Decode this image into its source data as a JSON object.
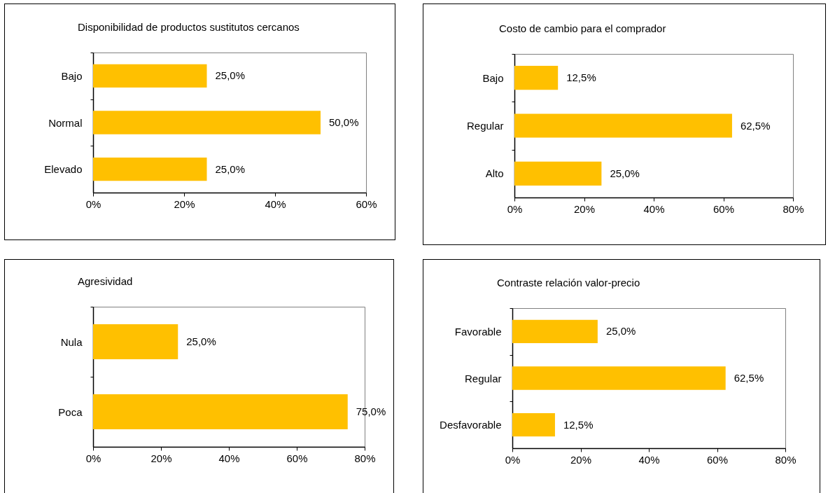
{
  "chart_data": [
    {
      "type": "bar",
      "orientation": "horizontal",
      "title": "Disponibilidad de productos sustitutos cercanos",
      "categories": [
        "Bajo",
        "Normal",
        "Elevado"
      ],
      "values": [
        25,
        50,
        25
      ],
      "value_labels": [
        "25,0%",
        "50,0%",
        "25,0%"
      ],
      "color": "#ffc000",
      "xlim": [
        0,
        60
      ],
      "xticks": [
        {
          "value": 0,
          "label": "0%"
        },
        {
          "value": 20,
          "label": "20%"
        },
        {
          "value": 40,
          "label": "40%"
        },
        {
          "value": 60,
          "label": "60%"
        }
      ]
    },
    {
      "type": "bar",
      "orientation": "horizontal",
      "title": "Costo de cambio para el comprador",
      "categories": [
        "Bajo",
        "Regular",
        "Alto"
      ],
      "values": [
        12.5,
        62.5,
        25
      ],
      "value_labels": [
        "12,5%",
        "62,5%",
        "25,0%"
      ],
      "color": "#ffc000",
      "xlim": [
        0,
        80
      ],
      "xticks": [
        {
          "value": 0,
          "label": "0%"
        },
        {
          "value": 20,
          "label": "20%"
        },
        {
          "value": 40,
          "label": "40%"
        },
        {
          "value": 60,
          "label": "60%"
        },
        {
          "value": 80,
          "label": "80%"
        }
      ]
    },
    {
      "type": "bar",
      "orientation": "horizontal",
      "title": "Agresividad",
      "categories": [
        "Nula",
        "Poca"
      ],
      "values": [
        25,
        75
      ],
      "value_labels": [
        "25,0%",
        "75,0%"
      ],
      "color": "#ffc000",
      "xlim": [
        0,
        80
      ],
      "xticks": [
        {
          "value": 0,
          "label": "0%"
        },
        {
          "value": 20,
          "label": "20%"
        },
        {
          "value": 40,
          "label": "40%"
        },
        {
          "value": 60,
          "label": "60%"
        },
        {
          "value": 80,
          "label": "80%"
        }
      ]
    },
    {
      "type": "bar",
      "orientation": "horizontal",
      "title": "Contraste relación valor-precio",
      "categories": [
        "Favorable",
        "Regular",
        "Desfavorable"
      ],
      "values": [
        25,
        62.5,
        12.5
      ],
      "value_labels": [
        "25,0%",
        "62,5%",
        "12,5%"
      ],
      "color": "#ffc000",
      "xlim": [
        0,
        80
      ],
      "xticks": [
        {
          "value": 0,
          "label": "0%"
        },
        {
          "value": 20,
          "label": "20%"
        },
        {
          "value": 40,
          "label": "40%"
        },
        {
          "value": 60,
          "label": "60%"
        },
        {
          "value": 80,
          "label": "80%"
        }
      ]
    }
  ]
}
